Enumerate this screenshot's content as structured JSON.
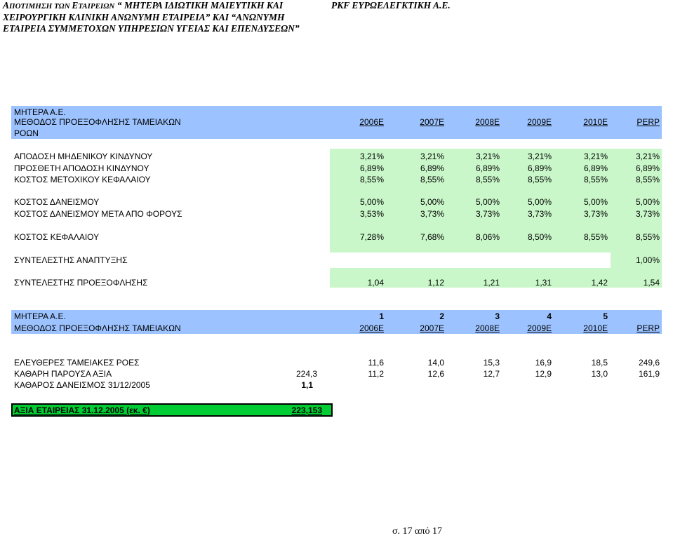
{
  "header": {
    "left_line1_prefix": "Α",
    "left_line1_small1": "ΠΟΤΙΜΗΣΗ ΤΩΝ ",
    "left_line1_e": "Ε",
    "left_line1_small2": "ΤΑΙΡΕΙΩΝ",
    "left_line1_rest": " “ ΜΗΤΕΡΑ ΙΔΙΩΤΙΚΗ ΜΑΙΕΥΤΙΚΗ ΚΑΙ",
    "left_line2": "ΧΕΙΡΟΥΡΓΙΚΗ ΚΛΙΝΙΚΗ ΑΝΩΝΥΜΗ ΕΤΑΙΡΕΙΑ” ΚΑΙ “ΑΝΩΝΥΜΗ",
    "left_line3": "ΕΤΑΙΡΕΙΑ ΣΥΜΜΕΤΟΧΩΝ ΥΠΗΡΕΣΙΩΝ ΥΓΕΙΑΣ ΚΑΙ ΕΠΕΝΔΥΣΕΩΝ”",
    "right": "PKF ΕΥΡΩΕΛΕΓΚΤΙΚΗ Α.Ε."
  },
  "table1": {
    "company": "ΜΗΤΕΡΑ Α.Ε.",
    "method_line1": "ΜΕΘΟΔΟΣ ΠΡΟΕΞΟΦΛΗΣΗΣ ΤΑΜΕΙΑΚΩΝ",
    "method_line2": "ΡΟΩΝ",
    "years": [
      "2006E",
      "2007E",
      "2008E",
      "2009E",
      "2010E",
      "PERP"
    ],
    "rows": [
      {
        "label": "ΑΠΟΔΟΣΗ ΜΗΔΕΝΙΚΟΥ ΚΙΝΔΥΝΟΥ",
        "values": [
          "3,21%",
          "3,21%",
          "3,21%",
          "3,21%",
          "3,21%",
          "3,21%"
        ]
      },
      {
        "label": "ΠΡΟΣΘΕΤΗ ΑΠΟΔΟΣΗ ΚΙΝΔΥΝΟΥ",
        "values": [
          "6,89%",
          "6,89%",
          "6,89%",
          "6,89%",
          "6,89%",
          "6,89%"
        ]
      },
      {
        "label": "ΚΟΣΤΟΣ ΜΕΤΟΧΙΚΟΥ ΚΕΦΑΛΑΙΟΥ",
        "values": [
          "8,55%",
          "8,55%",
          "8,55%",
          "8,55%",
          "8,55%",
          "8,55%"
        ]
      },
      {
        "label": "ΚΟΣΤΟΣ ΔΑΝΕΙΣΜΟΥ",
        "values": [
          "5,00%",
          "5,00%",
          "5,00%",
          "5,00%",
          "5,00%",
          "5,00%"
        ]
      },
      {
        "label": "ΚΟΣΤΟΣ ΔΑΝΕΙΣΜΟΥ ΜΕΤΑ ΑΠΟ ΦΟΡΟΥΣ",
        "values": [
          "3,53%",
          "3,73%",
          "3,73%",
          "3,73%",
          "3,73%",
          "3,73%"
        ]
      },
      {
        "label": "ΚΟΣΤΟΣ ΚΕΦΑΛΑΙΟΥ",
        "values": [
          "7,28%",
          "7,68%",
          "8,06%",
          "8,50%",
          "8,55%",
          "8,55%"
        ]
      },
      {
        "label": "ΣΥΝΤΕΛΕΣΤΗΣ ΑΝΑΠΤΥΞΗΣ",
        "values": [
          "",
          "",
          "",
          "",
          "",
          "1,00%"
        ]
      },
      {
        "label": "ΣΥΝΤΕΛΕΣΤΗΣ ΠΡΟΕΞΟΦΛΗΣΗΣ",
        "values": [
          "1,04",
          "1,12",
          "1,21",
          "1,31",
          "1,42",
          "1,54"
        ]
      }
    ]
  },
  "table2": {
    "company": "ΜΗΤΕΡΑ Α.Ε.",
    "method": "ΜΕΘΟΔΟΣ ΠΡΟΕΞΟΦΛΗΣΗΣ ΤΑΜΕΙΑΚΩΝ",
    "periods": [
      "1",
      "2",
      "3",
      "4",
      "5"
    ],
    "years": [
      "2006E",
      "2007E",
      "2008E",
      "2009E",
      "2010E",
      "PERP"
    ],
    "rows": [
      {
        "label": "ΕΛΕΥΘΕΡΕΣ ΤΑΜΕΙΑΚΕΣ ΡΟΕΣ",
        "total": "",
        "values": [
          "11,6",
          "14,0",
          "15,3",
          "16,9",
          "18,5",
          "249,6"
        ]
      },
      {
        "label": "ΚΑΘΑΡΗ ΠΑΡΟΥΣΑ ΑΞΙΑ",
        "total": "224,3",
        "values": [
          "11,2",
          "12,6",
          "12,7",
          "12,9",
          "13,0",
          "161,9"
        ]
      },
      {
        "label": "ΚΑΘΑΡΟΣ ΔΑΝΕΙΣΜΟΣ 31/12/2005",
        "total": "1,1",
        "values": [
          "",
          "",
          "",
          "",
          "",
          ""
        ]
      }
    ],
    "company_value_label": "ΑΞΙΑ ΕΤΑΙΡΕΙΑΣ 31.12.2005 (εκ. €)",
    "company_value": "223,153"
  },
  "footer": {
    "page": "σ. 17 από 17"
  }
}
